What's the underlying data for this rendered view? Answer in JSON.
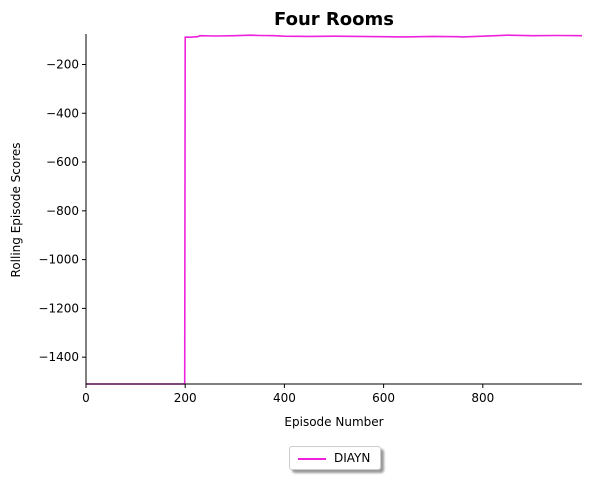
{
  "chart_data": {
    "type": "line",
    "title": "Four Rooms",
    "xlabel": "Episode Number",
    "ylabel": "Rolling Episode Scores",
    "xlim": [
      0,
      1000
    ],
    "ylim": [
      -1510,
      -75
    ],
    "xticks": [
      0,
      200,
      400,
      600,
      800
    ],
    "xtick_labels": [
      "0",
      "200",
      "400",
      "600",
      "800"
    ],
    "yticks": [
      -200,
      -400,
      -600,
      -800,
      -1000,
      -1200,
      -1400
    ],
    "ytick_labels": [
      "−200",
      "−400",
      "−600",
      "−800",
      "−1000",
      "−1200",
      "−1400"
    ],
    "grid": false,
    "legend_placement": "below-center",
    "series": [
      {
        "name": "DIAYN",
        "color": "#ee22dd",
        "x": [
          0,
          50,
          100,
          150,
          199,
          200,
          210,
          225,
          230,
          260,
          300,
          330,
          350,
          380,
          400,
          450,
          500,
          550,
          600,
          640,
          700,
          750,
          760,
          800,
          850,
          900,
          950,
          1000
        ],
        "y": [
          -1510,
          -1510,
          -1510,
          -1510,
          -1510,
          -88,
          -88,
          -86,
          -82,
          -83,
          -82,
          -80,
          -81,
          -82,
          -84,
          -85,
          -84,
          -85,
          -86,
          -87,
          -85,
          -86,
          -87,
          -84,
          -80,
          -82,
          -81,
          -82
        ]
      }
    ]
  }
}
